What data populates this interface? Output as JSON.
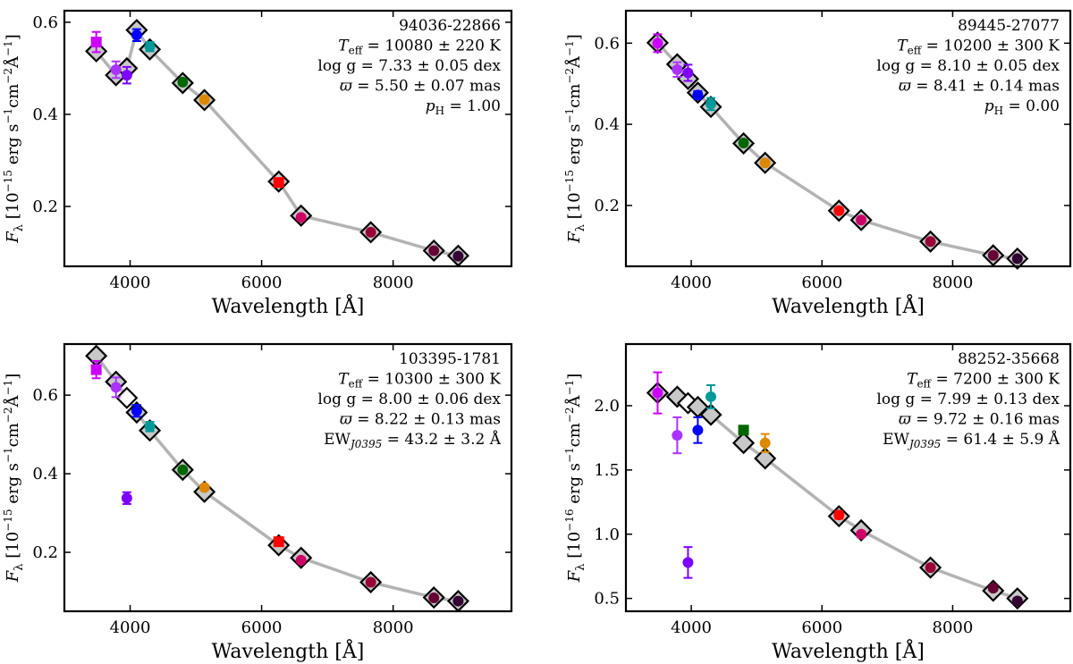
{
  "figure": {
    "xlabel": "Wavelength [Å]",
    "model_line_color": "#b3b3b3",
    "model_marker_face": "#c8c8c8"
  },
  "chart_data": [
    {
      "type": "scatter",
      "panel": "top-left",
      "ylabel": "F_λ [10^{-15} erg s^{-1} cm^{-2} Å^{-1}]",
      "y_unit_exp": "−15",
      "xlim": [
        3000,
        9800
      ],
      "ylim": [
        0.07,
        0.625
      ],
      "xticks": [
        4000,
        6000,
        8000
      ],
      "yticks": [
        0.2,
        0.4,
        0.6
      ],
      "yticklabels": [
        "0.2",
        "0.4",
        "0.6"
      ],
      "annotation": {
        "name": "94036-22866",
        "teff": "= 10080 ± 220 K",
        "logg": "= 7.33 ± 0.05 dex",
        "plx": "= 5.50 ± 0.07 mas",
        "extra_label": "p",
        "extra_sub": "H",
        "extra_val": "= 1.00"
      },
      "model": [
        {
          "x": 3485,
          "y": 0.537,
          "hollow": false
        },
        {
          "x": 3785,
          "y": 0.485,
          "hollow": false
        },
        {
          "x": 3950,
          "y": 0.5,
          "hollow": false
        },
        {
          "x": 4100,
          "y": 0.583,
          "hollow": false
        },
        {
          "x": 4300,
          "y": 0.541,
          "hollow": false
        },
        {
          "x": 4800,
          "y": 0.468,
          "hollow": false
        },
        {
          "x": 5130,
          "y": 0.431,
          "hollow": false
        },
        {
          "x": 6260,
          "y": 0.254,
          "hollow": false
        },
        {
          "x": 6600,
          "y": 0.18,
          "hollow": false
        },
        {
          "x": 7660,
          "y": 0.144,
          "hollow": false
        },
        {
          "x": 8620,
          "y": 0.104,
          "hollow": false
        },
        {
          "x": 8990,
          "y": 0.093,
          "hollow": false
        }
      ],
      "obs": [
        {
          "x": 3485,
          "y": 0.557,
          "err": 0.022,
          "color": "#cc00ff",
          "marker": "square"
        },
        {
          "x": 3785,
          "y": 0.497,
          "err": 0.018,
          "color": "#aa33ff",
          "marker": "circle"
        },
        {
          "x": 3950,
          "y": 0.485,
          "err": 0.018,
          "color": "#7d00ff",
          "marker": "circle"
        },
        {
          "x": 4100,
          "y": 0.572,
          "err": 0.013,
          "color": "#0000ff",
          "marker": "circle"
        },
        {
          "x": 4300,
          "y": 0.547,
          "err": 0.01,
          "color": "#009999",
          "marker": "circle"
        },
        {
          "x": 4800,
          "y": 0.47,
          "err": 0.006,
          "color": "#006600",
          "marker": "circle"
        },
        {
          "x": 5130,
          "y": 0.432,
          "err": 0.006,
          "color": "#dd8800",
          "marker": "circle"
        },
        {
          "x": 6260,
          "y": 0.252,
          "err": 0.008,
          "color": "#ff0000",
          "marker": "square"
        },
        {
          "x": 6600,
          "y": 0.176,
          "err": 0.004,
          "color": "#cc0066",
          "marker": "circle"
        },
        {
          "x": 7660,
          "y": 0.144,
          "err": 0.003,
          "color": "#990033",
          "marker": "circle"
        },
        {
          "x": 8620,
          "y": 0.104,
          "err": 0.003,
          "color": "#660033",
          "marker": "circle"
        },
        {
          "x": 8990,
          "y": 0.092,
          "err": 0.003,
          "color": "#330033",
          "marker": "circle"
        }
      ]
    },
    {
      "type": "scatter",
      "panel": "top-right",
      "ylabel": "F_λ [10^{-15} erg s^{-1} cm^{-2} Å^{-1}]",
      "y_unit_exp": "−15",
      "xlim": [
        3000,
        9800
      ],
      "ylim": [
        0.05,
        0.68
      ],
      "xticks": [
        4000,
        6000,
        8000
      ],
      "yticks": [
        0.2,
        0.4,
        0.6
      ],
      "yticklabels": [
        "0.2",
        "0.4",
        "0.6"
      ],
      "annotation": {
        "name": "89445-27077",
        "teff": "= 10200 ± 300 K",
        "logg": "= 8.10 ± 0.05 dex",
        "plx": "= 8.41 ± 0.14 mas",
        "extra_label": "p",
        "extra_sub": "H",
        "extra_val": "= 0.00"
      },
      "model": [
        {
          "x": 3485,
          "y": 0.601,
          "hollow": false
        },
        {
          "x": 3785,
          "y": 0.548,
          "hollow": false
        },
        {
          "x": 3950,
          "y": 0.512,
          "hollow": false
        },
        {
          "x": 4100,
          "y": 0.478,
          "hollow": false
        },
        {
          "x": 4300,
          "y": 0.443,
          "hollow": false
        },
        {
          "x": 4800,
          "y": 0.353,
          "hollow": false
        },
        {
          "x": 5130,
          "y": 0.305,
          "hollow": false
        },
        {
          "x": 6260,
          "y": 0.187,
          "hollow": false
        },
        {
          "x": 6600,
          "y": 0.164,
          "hollow": false
        },
        {
          "x": 7660,
          "y": 0.111,
          "hollow": false
        },
        {
          "x": 8620,
          "y": 0.077,
          "hollow": false
        },
        {
          "x": 8990,
          "y": 0.069,
          "hollow": false
        }
      ],
      "obs": [
        {
          "x": 3485,
          "y": 0.6,
          "err": 0.022,
          "color": "#cc00ff",
          "marker": "circle"
        },
        {
          "x": 3785,
          "y": 0.535,
          "err": 0.018,
          "color": "#aa33ff",
          "marker": "circle"
        },
        {
          "x": 3950,
          "y": 0.527,
          "err": 0.02,
          "color": "#7d00ff",
          "marker": "circle"
        },
        {
          "x": 4100,
          "y": 0.472,
          "err": 0.01,
          "color": "#0000ff",
          "marker": "circle"
        },
        {
          "x": 4300,
          "y": 0.45,
          "err": 0.015,
          "color": "#009999",
          "marker": "circle"
        },
        {
          "x": 4800,
          "y": 0.354,
          "err": 0.005,
          "color": "#006600",
          "marker": "circle"
        },
        {
          "x": 5130,
          "y": 0.305,
          "err": 0.005,
          "color": "#dd8800",
          "marker": "circle"
        },
        {
          "x": 6260,
          "y": 0.187,
          "err": 0.006,
          "color": "#ff0000",
          "marker": "circle"
        },
        {
          "x": 6600,
          "y": 0.164,
          "err": 0.004,
          "color": "#cc0066",
          "marker": "circle"
        },
        {
          "x": 7660,
          "y": 0.111,
          "err": 0.003,
          "color": "#990033",
          "marker": "circle"
        },
        {
          "x": 8620,
          "y": 0.077,
          "err": 0.003,
          "color": "#660033",
          "marker": "circle"
        },
        {
          "x": 8990,
          "y": 0.069,
          "err": 0.003,
          "color": "#330033",
          "marker": "circle"
        }
      ]
    },
    {
      "type": "scatter",
      "panel": "bottom-left",
      "ylabel": "F_λ [10^{-15} erg s^{-1} cm^{-2} Å^{-1}]",
      "y_unit_exp": "−15",
      "xlim": [
        3000,
        9800
      ],
      "ylim": [
        0.05,
        0.73
      ],
      "xticks": [
        4000,
        6000,
        8000
      ],
      "yticks": [
        0.2,
        0.4,
        0.6
      ],
      "yticklabels": [
        "0.2",
        "0.4",
        "0.6"
      ],
      "annotation": {
        "name": "103395-1781",
        "teff": "= 10300 ± 300 K",
        "logg": "= 8.00 ± 0.06 dex",
        "plx": "= 8.22 ± 0.13 mas",
        "extra_label": "EW",
        "extra_sub": "J0395",
        "extra_val": "= 43.2 ± 3.2 Å"
      },
      "model": [
        {
          "x": 3485,
          "y": 0.7,
          "hollow": false
        },
        {
          "x": 3785,
          "y": 0.634,
          "hollow": false
        },
        {
          "x": 3950,
          "y": 0.593,
          "hollow": true
        },
        {
          "x": 4100,
          "y": 0.556,
          "hollow": false
        },
        {
          "x": 4300,
          "y": 0.51,
          "hollow": false
        },
        {
          "x": 4800,
          "y": 0.41,
          "hollow": false
        },
        {
          "x": 5130,
          "y": 0.354,
          "hollow": false
        },
        {
          "x": 6260,
          "y": 0.218,
          "hollow": false
        },
        {
          "x": 6600,
          "y": 0.186,
          "hollow": false
        },
        {
          "x": 7660,
          "y": 0.124,
          "hollow": false
        },
        {
          "x": 8620,
          "y": 0.085,
          "hollow": false
        },
        {
          "x": 8990,
          "y": 0.076,
          "hollow": false
        }
      ],
      "obs": [
        {
          "x": 3485,
          "y": 0.665,
          "err": 0.022,
          "color": "#cc00ff",
          "marker": "square"
        },
        {
          "x": 3785,
          "y": 0.62,
          "err": 0.025,
          "color": "#aa33ff",
          "marker": "circle"
        },
        {
          "x": 3950,
          "y": 0.338,
          "err": 0.015,
          "color": "#7d00ff",
          "marker": "circle"
        },
        {
          "x": 4100,
          "y": 0.56,
          "err": 0.015,
          "color": "#0000ff",
          "marker": "circle"
        },
        {
          "x": 4300,
          "y": 0.52,
          "err": 0.012,
          "color": "#009999",
          "marker": "circle"
        },
        {
          "x": 4800,
          "y": 0.41,
          "err": 0.006,
          "color": "#006600",
          "marker": "circle"
        },
        {
          "x": 5130,
          "y": 0.365,
          "err": 0.006,
          "color": "#dd8800",
          "marker": "circle"
        },
        {
          "x": 6260,
          "y": 0.227,
          "err": 0.008,
          "color": "#ff0000",
          "marker": "square"
        },
        {
          "x": 6600,
          "y": 0.18,
          "err": 0.004,
          "color": "#cc0066",
          "marker": "circle"
        },
        {
          "x": 7660,
          "y": 0.124,
          "err": 0.003,
          "color": "#990033",
          "marker": "circle"
        },
        {
          "x": 8620,
          "y": 0.084,
          "err": 0.003,
          "color": "#660033",
          "marker": "circle"
        },
        {
          "x": 8990,
          "y": 0.076,
          "err": 0.003,
          "color": "#330033",
          "marker": "circle"
        }
      ]
    },
    {
      "type": "scatter",
      "panel": "bottom-right",
      "ylabel": "F_λ [10^{-16} erg s^{-1} cm^{-2} Å^{-1}]",
      "y_unit_exp": "−16",
      "xlim": [
        3000,
        9800
      ],
      "ylim": [
        0.4,
        2.48
      ],
      "xticks": [
        4000,
        6000,
        8000
      ],
      "yticks": [
        0.5,
        1.0,
        1.5,
        2.0
      ],
      "yticklabels": [
        "0.5",
        "1.0",
        "1.5",
        "2.0"
      ],
      "annotation": {
        "name": "88252-35668",
        "teff": "= 7200 ± 300 K",
        "logg": "= 7.99 ± 0.13 dex",
        "plx": "= 9.72 ± 0.16 mas",
        "extra_label": "EW",
        "extra_sub": "J0395",
        "extra_val": "= 61.4 ± 5.9 Å"
      },
      "model": [
        {
          "x": 3485,
          "y": 2.1,
          "hollow": false
        },
        {
          "x": 3785,
          "y": 2.07,
          "hollow": false
        },
        {
          "x": 3950,
          "y": 2.02,
          "hollow": true
        },
        {
          "x": 4100,
          "y": 1.99,
          "hollow": false
        },
        {
          "x": 4300,
          "y": 1.93,
          "hollow": false
        },
        {
          "x": 4800,
          "y": 1.71,
          "hollow": false
        },
        {
          "x": 5130,
          "y": 1.59,
          "hollow": false
        },
        {
          "x": 6260,
          "y": 1.14,
          "hollow": false
        },
        {
          "x": 6600,
          "y": 1.03,
          "hollow": false
        },
        {
          "x": 7660,
          "y": 0.74,
          "hollow": false
        },
        {
          "x": 8620,
          "y": 0.56,
          "hollow": false
        },
        {
          "x": 8990,
          "y": 0.5,
          "hollow": false
        }
      ],
      "obs": [
        {
          "x": 3485,
          "y": 2.1,
          "err": 0.16,
          "color": "#cc00ff",
          "marker": "circle"
        },
        {
          "x": 3785,
          "y": 1.77,
          "err": 0.14,
          "color": "#aa33ff",
          "marker": "circle"
        },
        {
          "x": 3950,
          "y": 0.78,
          "err": 0.12,
          "color": "#7d00ff",
          "marker": "circle"
        },
        {
          "x": 4100,
          "y": 1.81,
          "err": 0.1,
          "color": "#0000ff",
          "marker": "circle"
        },
        {
          "x": 4300,
          "y": 2.07,
          "err": 0.09,
          "color": "#009999",
          "marker": "circle"
        },
        {
          "x": 4800,
          "y": 1.81,
          "err": 0.03,
          "color": "#006600",
          "marker": "square"
        },
        {
          "x": 5130,
          "y": 1.71,
          "err": 0.07,
          "color": "#dd8800",
          "marker": "circle"
        },
        {
          "x": 6260,
          "y": 1.15,
          "err": 0.03,
          "color": "#ff0000",
          "marker": "circle"
        },
        {
          "x": 6600,
          "y": 1.0,
          "err": 0.02,
          "color": "#cc0066",
          "marker": "circle"
        },
        {
          "x": 7660,
          "y": 0.74,
          "err": 0.02,
          "color": "#990033",
          "marker": "circle"
        },
        {
          "x": 8620,
          "y": 0.58,
          "err": 0.02,
          "color": "#660033",
          "marker": "circle"
        },
        {
          "x": 8990,
          "y": 0.48,
          "err": 0.02,
          "color": "#330033",
          "marker": "circle"
        }
      ]
    }
  ]
}
